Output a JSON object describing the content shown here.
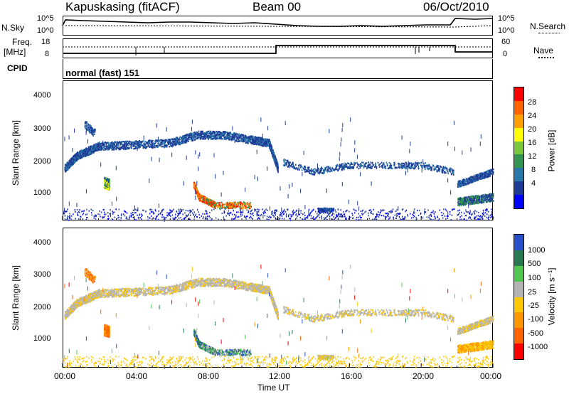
{
  "header": {
    "site": "Kapuskasing (fitACF)",
    "beam": "Beam 00",
    "date": "06/Oct/2010"
  },
  "noise_panel": {
    "left_label": "N.Sky",
    "right_label": "N.Search",
    "ticks": [
      "10^5",
      "10^0"
    ]
  },
  "freq_panel": {
    "left_label_1": "Freq.",
    "left_label_2": "[MHz]",
    "left_ticks": [
      "18",
      "8"
    ],
    "right_label": "Nave",
    "right_ticks": [
      "60",
      "0"
    ]
  },
  "cpid_panel": {
    "label": "CPID",
    "mode_text": "normal (fast) 151"
  },
  "chart_data": [
    {
      "type": "heatmap",
      "name": "power",
      "ylabel": "Slant Range [km]",
      "yticks": [
        "4000",
        "3000",
        "2000",
        "1000"
      ],
      "colorbar_label": "Power [dB]",
      "colorbar_ticks": [
        "28",
        "24",
        "20",
        "16",
        "12",
        "8",
        "4"
      ],
      "colors": [
        "#0000ff",
        "#1e3c96",
        "#2878aa",
        "#329650",
        "#78c83c",
        "#ffff00",
        "#ffa000",
        "#ff6400",
        "#ff0000"
      ]
    },
    {
      "type": "heatmap",
      "name": "velocity",
      "ylabel": "Slant Range [km]",
      "yticks": [
        "4000",
        "3000",
        "2000",
        "1000"
      ],
      "colorbar_label": "Velocity [m s⁻¹]",
      "colorbar_ticks": [
        "1000",
        "500",
        "100",
        "25",
        "-25",
        "-100",
        "-500",
        "-1000"
      ],
      "colors": [
        "#2850c8",
        "#287850",
        "#50c850",
        "#b4b4b4",
        "#ffc800",
        "#ff9600",
        "#ff6400",
        "#ff0000"
      ]
    }
  ],
  "time_axis": {
    "label": "Time UT",
    "ticks": [
      "00:00",
      "04:00",
      "08:00",
      "12:00",
      "16:00",
      "20:00",
      "00:00"
    ]
  }
}
